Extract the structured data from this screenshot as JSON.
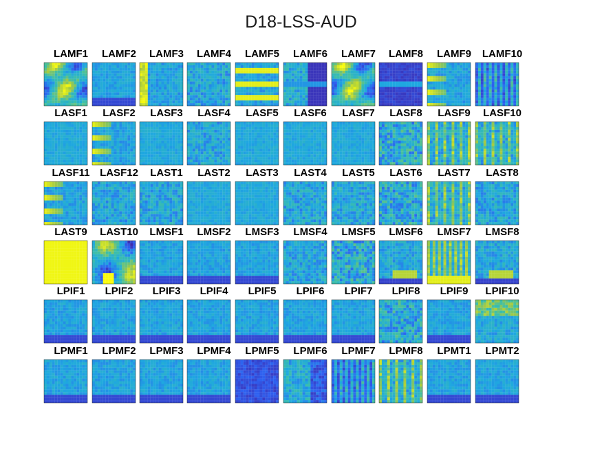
{
  "chart_data": {
    "type": "heatmap",
    "title": "D18-LSS-AUD",
    "colormap": "parula",
    "colors": {
      "low": "#3e26a8",
      "mid": "#1fa8e0",
      "high": "#f9fb0e"
    },
    "layout": {
      "rows": 6,
      "cols": 10
    },
    "panels": [
      {
        "label": "LAMF1",
        "style": "yellow-blobs"
      },
      {
        "label": "LAMF2",
        "style": "blue-bottom"
      },
      {
        "label": "LAMF3",
        "style": "yellow-left"
      },
      {
        "label": "LAMF4",
        "style": "speckle"
      },
      {
        "label": "LAMF5",
        "style": "yellow-bands"
      },
      {
        "label": "LAMF6",
        "style": "dark-right-bands"
      },
      {
        "label": "LAMF7",
        "style": "yellow-blobs"
      },
      {
        "label": "LAMF8",
        "style": "dark-band-mid"
      },
      {
        "label": "LAMF9",
        "style": "yellow-left-bands"
      },
      {
        "label": "LAMF10",
        "style": "dark-stripes"
      },
      {
        "label": "LASF1",
        "style": "plain"
      },
      {
        "label": "LASF2",
        "style": "yellow-left-bands"
      },
      {
        "label": "LASF3",
        "style": "plain"
      },
      {
        "label": "LASF4",
        "style": "speckle"
      },
      {
        "label": "LASF5",
        "style": "plain"
      },
      {
        "label": "LASF6",
        "style": "plain"
      },
      {
        "label": "LASF7",
        "style": "plain"
      },
      {
        "label": "LASF8",
        "style": "speckle-yellow"
      },
      {
        "label": "LASF9",
        "style": "vertical-yellow"
      },
      {
        "label": "LASF10",
        "style": "vertical-yellow"
      },
      {
        "label": "LASF11",
        "style": "yellow-left-bands"
      },
      {
        "label": "LASF12",
        "style": "speckle"
      },
      {
        "label": "LAST1",
        "style": "speckle"
      },
      {
        "label": "LAST2",
        "style": "plain"
      },
      {
        "label": "LAST3",
        "style": "plain"
      },
      {
        "label": "LAST4",
        "style": "speckle"
      },
      {
        "label": "LAST5",
        "style": "speckle"
      },
      {
        "label": "LAST6",
        "style": "speckle-yellow"
      },
      {
        "label": "LAST7",
        "style": "vertical-yellow"
      },
      {
        "label": "LAST8",
        "style": "speckle"
      },
      {
        "label": "LAST9",
        "style": "full-yellow"
      },
      {
        "label": "LAST10",
        "style": "yellow-blobs-bottom"
      },
      {
        "label": "LMSF1",
        "style": "blue-bottom"
      },
      {
        "label": "LMSF2",
        "style": "blue-bottom"
      },
      {
        "label": "LMSF3",
        "style": "blue-bottom"
      },
      {
        "label": "LMSF4",
        "style": "speckle"
      },
      {
        "label": "LMSF5",
        "style": "speckle-yellow"
      },
      {
        "label": "LMSF6",
        "style": "yellow-bottom"
      },
      {
        "label": "LMSF7",
        "style": "yellow-bottom-vertical"
      },
      {
        "label": "LMSF8",
        "style": "yellow-bottom"
      },
      {
        "label": "LPIF1",
        "style": "blue-bottom"
      },
      {
        "label": "LPIF2",
        "style": "blue-bottom"
      },
      {
        "label": "LPIF3",
        "style": "blue-bottom"
      },
      {
        "label": "LPIF4",
        "style": "blue-bottom"
      },
      {
        "label": "LPIF5",
        "style": "blue-bottom"
      },
      {
        "label": "LPIF6",
        "style": "blue-bottom"
      },
      {
        "label": "LPIF7",
        "style": "blue-bottom"
      },
      {
        "label": "LPIF8",
        "style": "speckle-yellow"
      },
      {
        "label": "LPIF9",
        "style": "blue-bottom"
      },
      {
        "label": "LPIF10",
        "style": "yellow-top"
      },
      {
        "label": "LPMF1",
        "style": "blue-bottom"
      },
      {
        "label": "LPMF2",
        "style": "blue-bottom"
      },
      {
        "label": "LPMF3",
        "style": "blue-bottom"
      },
      {
        "label": "LPMF4",
        "style": "blue-bottom"
      },
      {
        "label": "LPMF5",
        "style": "dark-all"
      },
      {
        "label": "LPMF6",
        "style": "dark-right"
      },
      {
        "label": "LPMF7",
        "style": "dark-stripes"
      },
      {
        "label": "LPMF8",
        "style": "vertical-yellow"
      },
      {
        "label": "LPMT1",
        "style": "blue-bottom"
      },
      {
        "label": "LPMT2",
        "style": "blue-bottom"
      }
    ]
  }
}
